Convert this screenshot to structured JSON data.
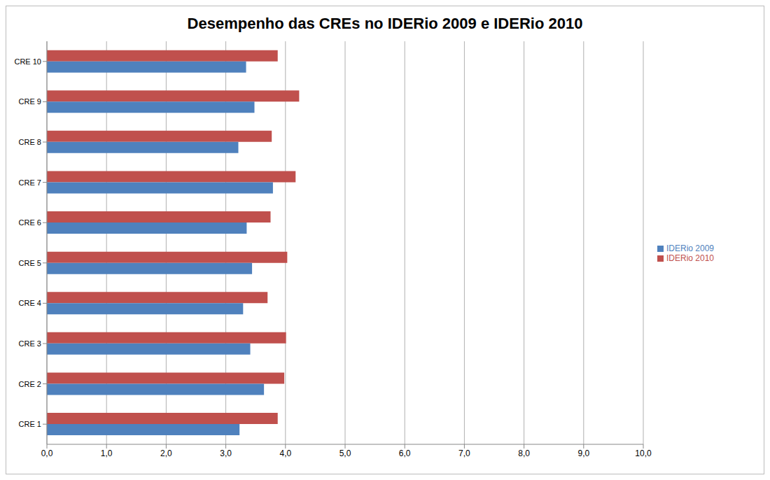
{
  "chart_data": {
    "type": "bar",
    "title": "Desempenho das CREs no IDERio 2009 e IDERio 2010",
    "orientation": "horizontal",
    "categories": [
      "CRE 1",
      "CRE 2",
      "CRE 3",
      "CRE 4",
      "CRE 5",
      "CRE 6",
      "CRE 7",
      "CRE 8",
      "CRE 9",
      "CRE 10"
    ],
    "series": [
      {
        "name": "IDERio 2010",
        "color": "#c0504d",
        "values": [
          3.87,
          3.98,
          4.01,
          3.7,
          4.03,
          3.75,
          4.17,
          3.77,
          4.23,
          3.87
        ]
      },
      {
        "name": "IDERio 2009",
        "color": "#4f81bd",
        "values": [
          3.23,
          3.64,
          3.41,
          3.29,
          3.44,
          3.35,
          3.79,
          3.21,
          3.48,
          3.34
        ]
      }
    ],
    "xlim": [
      0,
      10
    ],
    "xticks": [
      {
        "value": 0,
        "label": "0,0"
      },
      {
        "value": 1,
        "label": "1,0"
      },
      {
        "value": 2,
        "label": "2,0"
      },
      {
        "value": 3,
        "label": "3,0"
      },
      {
        "value": 4,
        "label": "4,0"
      },
      {
        "value": 5,
        "label": "5,0"
      },
      {
        "value": 6,
        "label": "6,0"
      },
      {
        "value": 7,
        "label": "7,0"
      },
      {
        "value": 8,
        "label": "8,0"
      },
      {
        "value": 9,
        "label": "9,0"
      },
      {
        "value": 10,
        "label": "10,0"
      }
    ],
    "grid": true,
    "legend": "right"
  }
}
